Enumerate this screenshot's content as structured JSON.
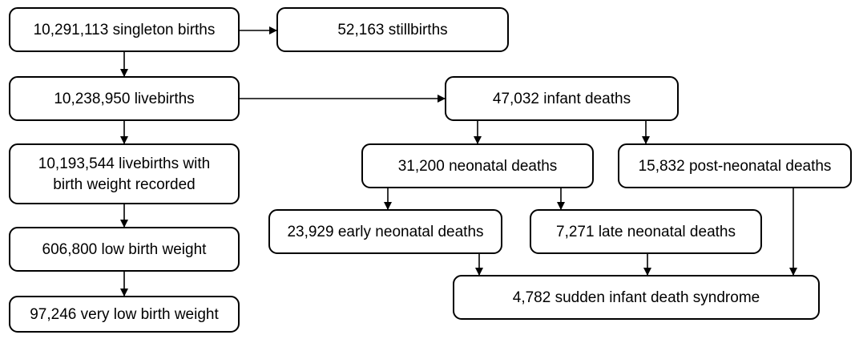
{
  "nodes": [
    {
      "label": [
        "10,291,113 singleton births"
      ]
    },
    {
      "label": [
        "52,163 stillbirths"
      ]
    },
    {
      "label": [
        "10,238,950 livebirths"
      ]
    },
    {
      "label": [
        "47,032 infant deaths"
      ]
    },
    {
      "label": [
        "10,193,544 livebirths with",
        "birth weight recorded"
      ]
    },
    {
      "label": [
        "31,200 neonatal deaths"
      ]
    },
    {
      "label": [
        "15,832 post-neonatal deaths"
      ]
    },
    {
      "label": [
        "606,800 low birth weight"
      ]
    },
    {
      "label": [
        "23,929 early neonatal deaths"
      ]
    },
    {
      "label": [
        "7,271 late neonatal deaths"
      ]
    },
    {
      "label": [
        "97,246 very low birth weight"
      ]
    },
    {
      "label": [
        "4,782 sudden infant death syndrome"
      ]
    }
  ]
}
